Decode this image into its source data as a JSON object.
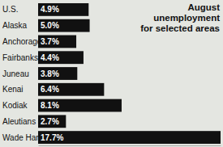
{
  "chart_data": {
    "type": "bar",
    "orientation": "horizontal",
    "title": "August unemployment for selected areas",
    "categories": [
      "U.S.",
      "Alaska",
      "Anchorage",
      "Fairbanks",
      "Juneau",
      "Kenai",
      "Kodiak",
      "Aleutians East",
      "Wade Hampton"
    ],
    "values": [
      4.9,
      5.0,
      3.7,
      4.4,
      3.8,
      6.4,
      8.1,
      2.7,
      17.7
    ],
    "value_labels": [
      "4.9%",
      "5.0%",
      "3.7%",
      "4.4%",
      "3.8%",
      "6.4%",
      "8.1%",
      "2.7%",
      "17.7%"
    ],
    "color": "#111111",
    "xlim": [
      0,
      17.7
    ],
    "data_labels": true,
    "tick_labels": false,
    "grid": false
  }
}
